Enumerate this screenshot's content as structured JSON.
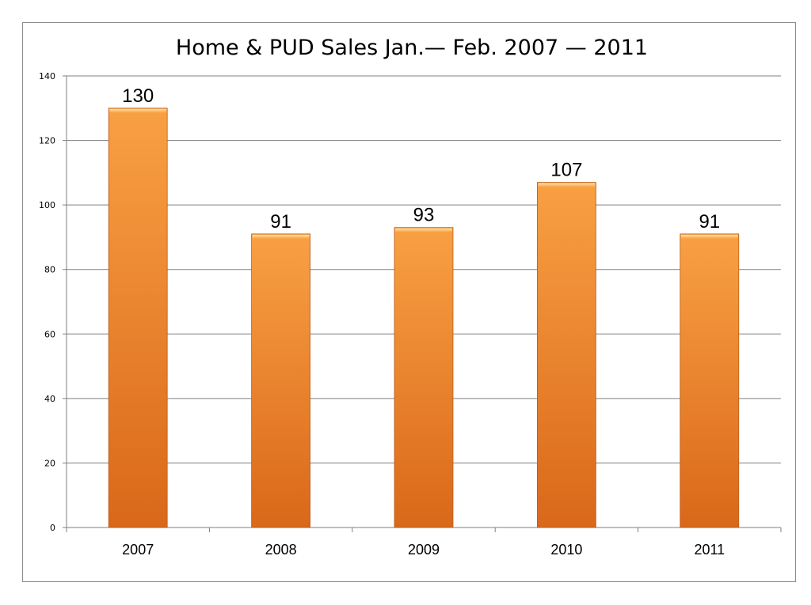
{
  "chart_data": {
    "type": "bar",
    "title": "Home & PUD Sales Jan.— Feb. 2007 — 2011",
    "xlabel": "",
    "ylabel": "",
    "categories": [
      "2007",
      "2008",
      "2009",
      "2010",
      "2011"
    ],
    "values": [
      130,
      91,
      93,
      107,
      91
    ],
    "ylim": [
      0,
      140
    ],
    "yticks": [
      0,
      20,
      40,
      60,
      80,
      100,
      120,
      140
    ],
    "grid": true,
    "legend": "none",
    "data_labels": true,
    "colors": {
      "bar_light": "#F9A043",
      "bar_dark": "#D9681A",
      "bar_edge": "#B85A14",
      "grid": "#7f7f7f",
      "axis": "#7f7f7f"
    }
  }
}
